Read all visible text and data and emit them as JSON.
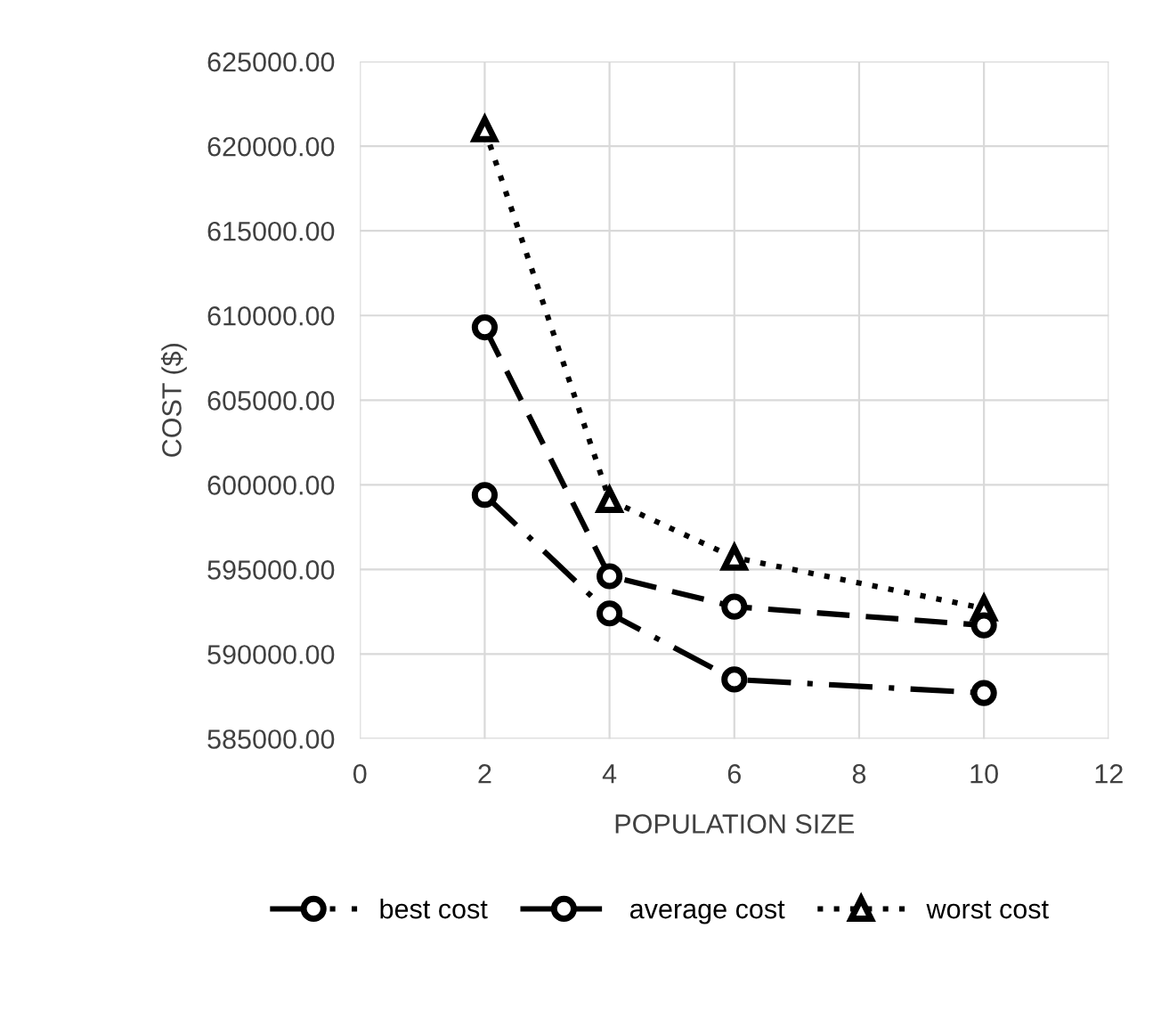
{
  "chart_data": {
    "type": "line",
    "xlabel": "POPULATION SIZE",
    "ylabel": "COST ($)",
    "x": [
      2,
      4,
      6,
      10
    ],
    "series": [
      {
        "name": "best cost",
        "color": "#000000",
        "values": [
          599400,
          592400,
          588500,
          587700
        ],
        "line_style": "dashdot",
        "marker": "circle"
      },
      {
        "name": "average cost",
        "color": "#000000",
        "values": [
          609300,
          594600,
          592800,
          591700
        ],
        "line_style": "dashed",
        "marker": "circle"
      },
      {
        "name": "worst cost",
        "color": "#000000",
        "values": [
          621000,
          599100,
          595700,
          592700
        ],
        "line_style": "dotted",
        "marker": "triangle"
      }
    ],
    "xlim": [
      0,
      12
    ],
    "xticks": [
      0,
      2,
      4,
      6,
      8,
      10,
      12
    ],
    "ylim": [
      585000,
      625000
    ],
    "yticks": [
      {
        "value": 585000,
        "label": "585000.00"
      },
      {
        "value": 590000,
        "label": "590000.00"
      },
      {
        "value": 595000,
        "label": "595000.00"
      },
      {
        "value": 600000,
        "label": "600000.00"
      },
      {
        "value": 605000,
        "label": "605000.00"
      },
      {
        "value": 610000,
        "label": "610000.00"
      },
      {
        "value": 615000,
        "label": "615000.00"
      },
      {
        "value": 620000,
        "label": "620000.00"
      },
      {
        "value": 625000,
        "label": "625000.00"
      }
    ],
    "grid": true,
    "legend": "bottom"
  }
}
